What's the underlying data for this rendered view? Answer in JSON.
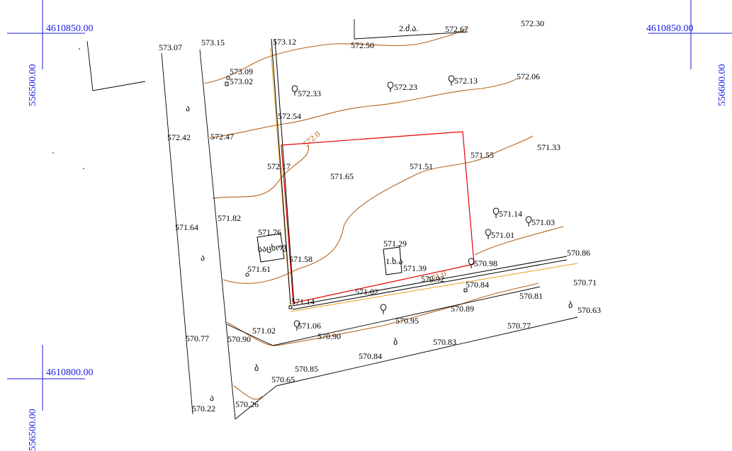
{
  "colors": {
    "grid": "#1a1ae6",
    "contour": "#b5651d",
    "parcel": "#e60000",
    "fence": "#e6a020",
    "line": "#000000"
  },
  "grid_labels": [
    {
      "text": "4610850.00"
    },
    {
      "text": "4610850.00"
    },
    {
      "text": "4610800.00"
    },
    {
      "text": "556500.00"
    },
    {
      "text": "556600.00"
    },
    {
      "text": "556500.00"
    }
  ],
  "elevations": [
    "573.07",
    "573.15",
    "573.12",
    "572.50",
    "572.67",
    "572.30",
    "573.09",
    "573.02",
    "572.33",
    "572.23",
    "572.13",
    "572.06",
    "572.54",
    "572.42",
    "572.47",
    "572.17",
    "571.65",
    "571.51",
    "571.55",
    "571.33",
    "571.82",
    "571.64",
    "571.76",
    "571.58",
    "571.61",
    "571.29",
    "571.39",
    "571.14",
    "570.92",
    "571.02",
    "571.14",
    "571.03",
    "571.01",
    "570.98",
    "570.86",
    "570.84",
    "570.71",
    "570.81",
    "570.89",
    "570.95",
    "570.63",
    "571.06",
    "571.02",
    "570.90",
    "570.90",
    "570.77",
    "570.77",
    "570.83",
    "570.84",
    "570.85",
    "570.65",
    "570.26",
    "570.22"
  ],
  "labels": {
    "top_building": "2.ძ.ა.",
    "house": "საცხოვ",
    "shed": "1.ხ.ა",
    "contour_572": "572.0",
    "contour_571": "571.0",
    "letter_a1": "ა",
    "letter_a2": "ა",
    "letter_a3": "ა",
    "letter_b1": "ბ",
    "letter_b2": "ბ",
    "letter_b3": "ბ"
  }
}
